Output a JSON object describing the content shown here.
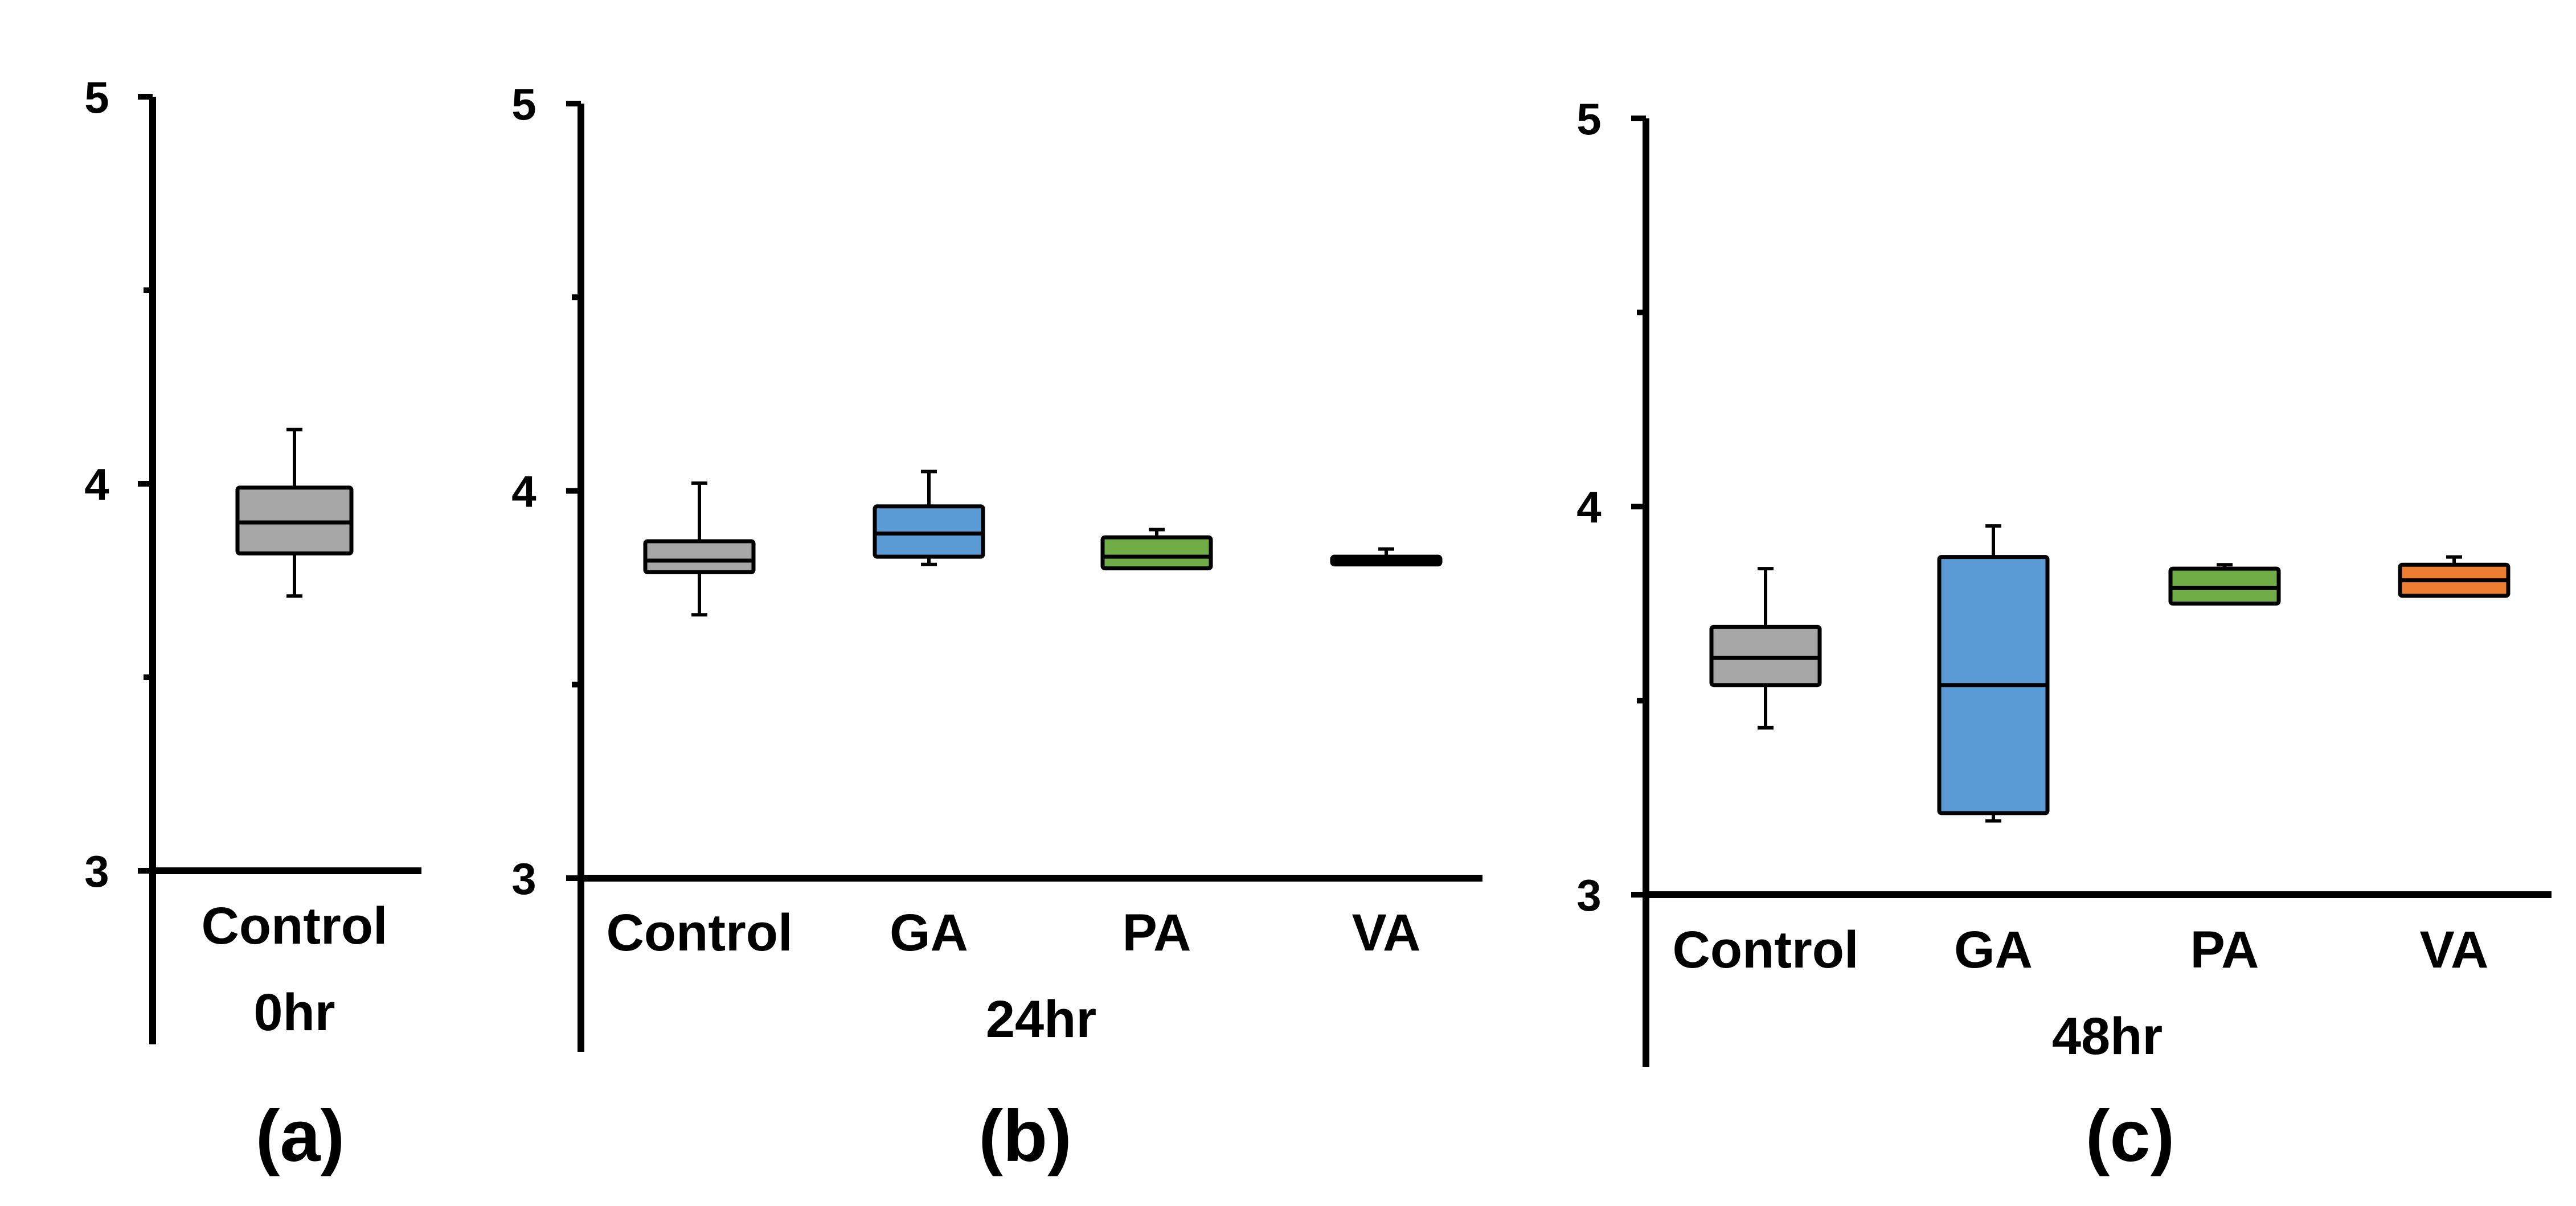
{
  "chart_data": [
    {
      "type": "boxplot",
      "panel_label": "(a)",
      "group_label": "0hr",
      "ylim": [
        3,
        5
      ],
      "yticks": [
        "3",
        "4",
        "5"
      ],
      "categories": [
        "Control"
      ],
      "boxes": [
        {
          "category": "Control",
          "color": "#a6a6a6",
          "whisker_low": 3.71,
          "q1": 3.82,
          "median": 3.9,
          "q3": 3.99,
          "whisker_high": 4.14
        }
      ]
    },
    {
      "type": "boxplot",
      "panel_label": "(b)",
      "group_label": "24hr",
      "ylim": [
        3,
        5
      ],
      "yticks": [
        "3",
        "4",
        "5"
      ],
      "categories": [
        "Control",
        "GA",
        "PA",
        "VA"
      ],
      "boxes": [
        {
          "category": "Control",
          "color": "#a6a6a6",
          "whisker_low": 3.68,
          "q1": 3.79,
          "median": 3.82,
          "q3": 3.87,
          "whisker_high": 4.02
        },
        {
          "category": "GA",
          "color": "#5b9bd5",
          "whisker_low": 3.81,
          "q1": 3.83,
          "median": 3.89,
          "q3": 3.96,
          "whisker_high": 4.05
        },
        {
          "category": "PA",
          "color": "#70ad47",
          "whisker_low": 3.8,
          "q1": 3.8,
          "median": 3.83,
          "q3": 3.88,
          "whisker_high": 3.9
        },
        {
          "category": "VA",
          "color": "#000000",
          "whisker_low": 3.81,
          "q1": 3.81,
          "median": 3.82,
          "q3": 3.83,
          "whisker_high": 3.85
        }
      ]
    },
    {
      "type": "boxplot",
      "panel_label": "(c)",
      "group_label": "48hr",
      "ylim": [
        3,
        5
      ],
      "yticks": [
        "3",
        "4",
        "5"
      ],
      "categories": [
        "Control",
        "GA",
        "PA",
        "VA"
      ],
      "boxes": [
        {
          "category": "Control",
          "color": "#a6a6a6",
          "whisker_low": 3.43,
          "q1": 3.54,
          "median": 3.61,
          "q3": 3.69,
          "whisker_high": 3.84
        },
        {
          "category": "GA",
          "color": "#5b9bd5",
          "whisker_low": 3.19,
          "q1": 3.21,
          "median": 3.54,
          "q3": 3.87,
          "whisker_high": 3.95
        },
        {
          "category": "PA",
          "color": "#70ad47",
          "whisker_low": 3.75,
          "q1": 3.75,
          "median": 3.79,
          "q3": 3.84,
          "whisker_high": 3.85
        },
        {
          "category": "VA",
          "color": "#ed7d31",
          "whisker_low": 3.77,
          "q1": 3.77,
          "median": 3.81,
          "q3": 3.85,
          "whisker_high": 3.87
        }
      ]
    }
  ]
}
